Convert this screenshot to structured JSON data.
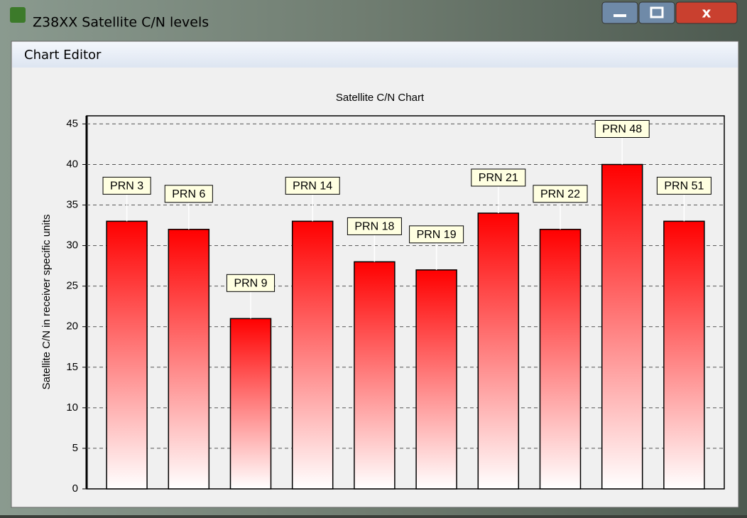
{
  "window": {
    "title": "Z38XX Satellite C/N levels",
    "menu": [
      "Chart Editor"
    ]
  },
  "chart_data": {
    "type": "bar",
    "title": "Satellite C/N Chart",
    "y_label": "Satellite C/N in receiver specific units",
    "categories": [
      "PRN 3",
      "PRN 6",
      "PRN 9",
      "PRN 14",
      "PRN 18",
      "PRN 19",
      "PRN 21",
      "PRN 22",
      "PRN 48",
      "PRN 51"
    ],
    "values": [
      33,
      32,
      21,
      33,
      28,
      27,
      34,
      32,
      40,
      33
    ],
    "color": "#ff0000",
    "ylim": [
      0,
      46
    ],
    "yticks": [
      0,
      5,
      10,
      15,
      20,
      25,
      30,
      35,
      40,
      45
    ],
    "grid": true
  }
}
